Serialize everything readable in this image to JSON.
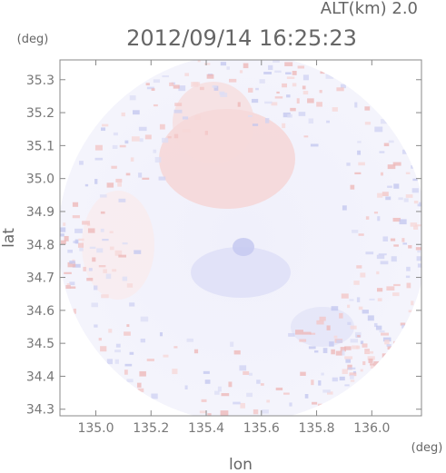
{
  "chart_data": {
    "type": "heatmap",
    "title": "2012/09/14 16:25:23",
    "subtitle": "ALT(km) 2.0",
    "xlabel": "lon",
    "ylabel": "lat",
    "x_unit": "(deg)",
    "y_unit": "(deg)",
    "xlim": [
      134.87,
      136.18
    ],
    "ylim": [
      34.28,
      35.36
    ],
    "x_ticks": [
      "135.0",
      "135.2",
      "135.4",
      "135.6",
      "135.8",
      "136.0"
    ],
    "y_ticks": [
      "34.3",
      "34.4",
      "34.5",
      "34.6",
      "34.7",
      "34.8",
      "34.9",
      "35.0",
      "35.1",
      "35.2",
      "35.3"
    ],
    "grid": false,
    "coverage": "circular radar domain centered at 135.52E, 34.82N",
    "notes": "colors: red = positive, blue = negative, near-white = ~0"
  }
}
